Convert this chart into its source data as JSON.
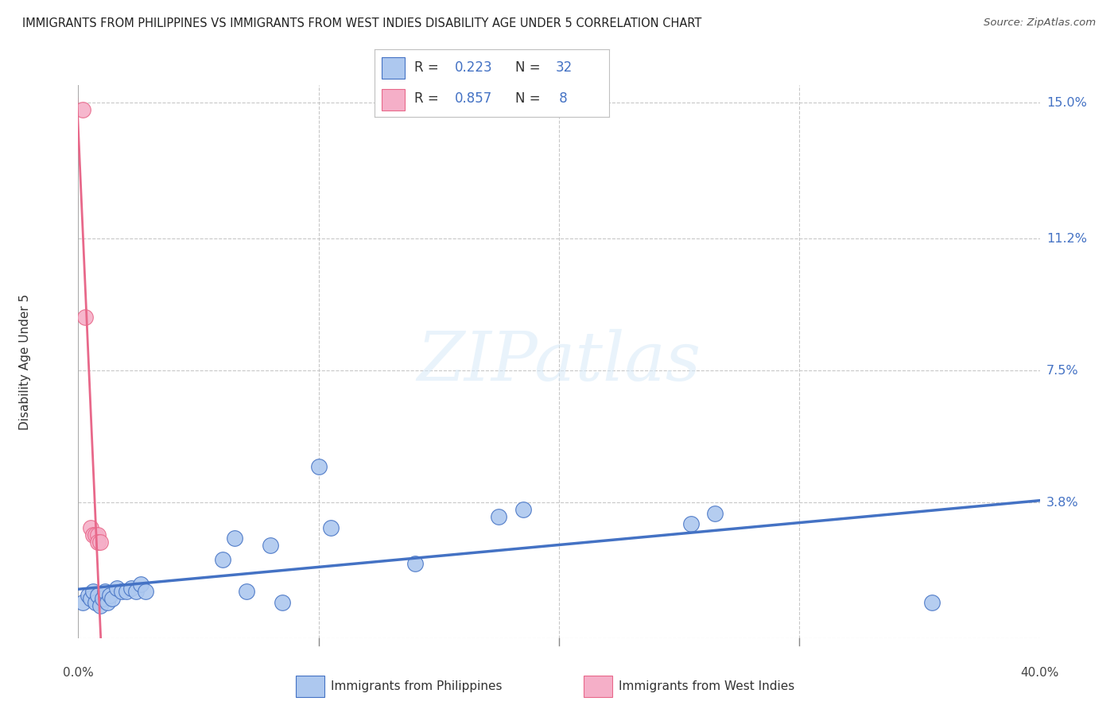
{
  "title": "IMMIGRANTS FROM PHILIPPINES VS IMMIGRANTS FROM WEST INDIES DISABILITY AGE UNDER 5 CORRELATION CHART",
  "source": "Source: ZipAtlas.com",
  "ylabel": "Disability Age Under 5",
  "xlim": [
    0.0,
    0.4
  ],
  "ylim": [
    0.0,
    0.155
  ],
  "yticks": [
    0.0,
    0.038,
    0.075,
    0.112,
    0.15
  ],
  "ytick_labels": [
    "",
    "3.8%",
    "7.5%",
    "11.2%",
    "15.0%"
  ],
  "xtick_positions": [
    0.1,
    0.2,
    0.3
  ],
  "philippines_color": "#adc8ef",
  "west_indies_color": "#f5afc8",
  "philippines_line_color": "#4472c4",
  "west_indies_line_color": "#e8688a",
  "philippines_R": 0.223,
  "philippines_N": 32,
  "west_indies_R": 0.857,
  "west_indies_N": 8,
  "philippines_x": [
    0.002,
    0.004,
    0.005,
    0.006,
    0.007,
    0.008,
    0.009,
    0.01,
    0.011,
    0.012,
    0.013,
    0.014,
    0.016,
    0.018,
    0.02,
    0.022,
    0.024,
    0.026,
    0.028,
    0.06,
    0.065,
    0.07,
    0.08,
    0.085,
    0.1,
    0.105,
    0.14,
    0.175,
    0.185,
    0.255,
    0.265,
    0.355
  ],
  "philippines_y": [
    0.01,
    0.012,
    0.011,
    0.013,
    0.01,
    0.012,
    0.009,
    0.011,
    0.013,
    0.01,
    0.012,
    0.011,
    0.014,
    0.013,
    0.013,
    0.014,
    0.013,
    0.015,
    0.013,
    0.022,
    0.028,
    0.013,
    0.026,
    0.01,
    0.048,
    0.031,
    0.021,
    0.034,
    0.036,
    0.032,
    0.035,
    0.01
  ],
  "west_indies_x": [
    0.002,
    0.003,
    0.005,
    0.006,
    0.007,
    0.008,
    0.008,
    0.009
  ],
  "west_indies_y": [
    0.148,
    0.09,
    0.031,
    0.029,
    0.029,
    0.029,
    0.027,
    0.027
  ],
  "watermark_text": "ZIPatlas",
  "background_color": "#ffffff",
  "grid_color": "#c8c8c8",
  "legend_box_color": "#cccccc",
  "bottom_legend_items": [
    "Immigrants from Philippines",
    "Immigrants from West Indies"
  ]
}
